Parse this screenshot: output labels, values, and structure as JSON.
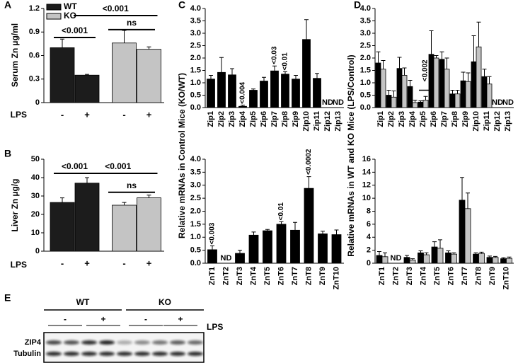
{
  "chart_data": [
    {
      "type": "bar",
      "label": "A",
      "ylabel": "Serum Zn µg/ml",
      "xlabel": "LPS",
      "categories": [
        "-",
        "+",
        "-",
        "+"
      ],
      "series": [
        {
          "colors": [
            "#1c1c1c",
            "#1c1c1c",
            "#c4c4c4",
            "#c4c4c4"
          ],
          "values": [
            0.7,
            0.35,
            0.76,
            0.68
          ],
          "errors": [
            0.11,
            0.01,
            0.16,
            0.03
          ]
        }
      ],
      "legend": [
        {
          "name": "WT",
          "color": "#1c1c1c"
        },
        {
          "name": "KO",
          "color": "#c4c4c4"
        }
      ],
      "annotations": [
        "<0.001",
        "<0.001",
        "ns"
      ],
      "ylim": [
        0,
        1.2
      ],
      "yticks": [
        0,
        0.3,
        0.6,
        0.9,
        1.2
      ]
    },
    {
      "type": "bar",
      "label": "B",
      "ylabel": "Liver Zn µg/g",
      "xlabel": "LPS",
      "categories": [
        "-",
        "+",
        "-",
        "+"
      ],
      "series": [
        {
          "colors": [
            "#1c1c1c",
            "#1c1c1c",
            "#c4c4c4",
            "#c4c4c4"
          ],
          "values": [
            26.5,
            37,
            25,
            29
          ],
          "errors": [
            2.5,
            3,
            1.5,
            1.5
          ]
        }
      ],
      "annotations": [
        "<0.001",
        "<0.001",
        "ns"
      ],
      "ylim": [
        0,
        50
      ],
      "yticks": [
        0,
        10,
        20,
        30,
        40,
        50
      ]
    },
    {
      "type": "bar",
      "label": "C",
      "ylabel": "Relative mRNAs in Control Mice (KO/WT)",
      "categories": [
        "Zip1",
        "Zip2",
        "Zip3",
        "Zip4",
        "Zip5",
        "Zip6",
        "Zip7",
        "Zip8",
        "Zip9",
        "Zip10",
        "Zip11",
        "Zip12",
        "Zip13"
      ],
      "series": [
        {
          "color": "#000000",
          "values": [
            1.15,
            1.42,
            1.32,
            0.05,
            0.7,
            1.07,
            1.48,
            1.35,
            1.15,
            2.75,
            1.18,
            null,
            null
          ],
          "errors": [
            0.15,
            0.6,
            0.25,
            0.05,
            0.05,
            0.15,
            0.2,
            0.1,
            0.15,
            0.8,
            0.2,
            null,
            null
          ],
          "value_labels": [
            null,
            null,
            null,
            null,
            null,
            null,
            null,
            null,
            null,
            null,
            null,
            "ND",
            "ND"
          ]
        }
      ],
      "annotations": [
        "<0.004",
        "<0.03",
        "<0.01"
      ],
      "ylim": [
        0,
        4.0
      ],
      "yticks": [
        {
          "value": 0,
          "label": "0.0"
        },
        0.5,
        {
          "value": 1,
          "label": "1.0"
        },
        1.5,
        {
          "value": 2,
          "label": "2.0"
        },
        2.5,
        {
          "value": 3,
          "label": "3.0"
        },
        3.5,
        {
          "value": 4,
          "label": "4.0"
        }
      ]
    },
    {
      "type": "bar",
      "categories": [
        "ZnT1",
        "ZnT2",
        "ZnT3",
        "ZnT4",
        "ZnT5",
        "ZnT6",
        "ZnT7",
        "ZnT8",
        "ZnT9",
        "ZnT10"
      ],
      "series": [
        {
          "color": "#000000",
          "values": [
            0.52,
            null,
            0.38,
            1.08,
            1.25,
            1.5,
            1.27,
            2.88,
            1.13,
            1.1
          ],
          "errors": [
            0.15,
            null,
            0.12,
            0.12,
            0.05,
            0.1,
            0.3,
            0.45,
            0.1,
            0.18
          ],
          "value_labels": [
            null,
            "ND",
            null,
            null,
            null,
            null,
            null,
            null,
            null,
            null
          ]
        }
      ],
      "annotations": [
        "<0.003",
        "<0.01",
        "<0.0002"
      ],
      "ylim": [
        0,
        4.0
      ],
      "yticks": [
        {
          "value": 0,
          "label": "0.0"
        },
        0.5,
        {
          "value": 1,
          "label": "1.0"
        },
        1.5,
        {
          "value": 2,
          "label": "2.0"
        },
        2.5,
        {
          "value": 3,
          "label": "3.0"
        },
        3.5,
        {
          "value": 4,
          "label": "4.0"
        }
      ]
    },
    {
      "type": "bar",
      "label": "D",
      "ylabel": "Relative mRNAs in WT and KO Mice (LPS/Control)",
      "categories": [
        "Zip1",
        "Zip2",
        "Zip3",
        "Zip4",
        "Zip5",
        "Zip6",
        "Zip7",
        "Zip8",
        "Zip9",
        "Zip10",
        "Zip11",
        "Zip12",
        "Zip13"
      ],
      "series": [
        {
          "color": "#000000",
          "values": [
            1.8,
            0.5,
            1.58,
            0.85,
            0.22,
            2.15,
            1.95,
            0.55,
            1.08,
            1.85,
            1.25,
            null,
            null
          ],
          "errors": [
            0.45,
            0.2,
            0.45,
            0.25,
            0.05,
            0.95,
            0.3,
            0.15,
            0.35,
            1.05,
            0.3,
            null,
            null
          ],
          "value_labels": [
            null,
            null,
            null,
            null,
            null,
            null,
            null,
            null,
            null,
            null,
            null,
            "ND",
            "ND"
          ]
        },
        {
          "color": "#c4c4c4",
          "values": [
            1.55,
            0.42,
            1.3,
            0.2,
            0.3,
            2.0,
            1.55,
            0.55,
            1.05,
            2.45,
            0.95,
            null,
            null
          ],
          "errors": [
            0.35,
            0.25,
            0.3,
            0.1,
            0.15,
            0.1,
            0.45,
            0.15,
            0.35,
            1.0,
            0.3,
            null,
            null
          ]
        }
      ],
      "annotations": [
        "<0.002"
      ],
      "ylim": [
        0,
        4.0
      ],
      "yticks": [
        {
          "value": 0,
          "label": "0.0"
        },
        0.5,
        {
          "value": 1,
          "label": "1.0"
        },
        1.5,
        {
          "value": 2,
          "label": "2.0"
        },
        2.5,
        {
          "value": 3,
          "label": "3.0"
        },
        3.5,
        {
          "value": 4,
          "label": "4.0"
        }
      ]
    },
    {
      "type": "bar",
      "categories": [
        "ZnT1",
        "ZnT2",
        "ZnT3",
        "ZnT4",
        "ZnT5",
        "ZnT6",
        "ZnT7",
        "ZnT8",
        "ZnT9",
        "ZnT10"
      ],
      "series": [
        {
          "color": "#000000",
          "values": [
            1.2,
            null,
            0.9,
            1.6,
            2.5,
            1.6,
            9.7,
            1.4,
            0.9,
            0.7
          ],
          "errors": [
            0.6,
            null,
            0.3,
            0.3,
            0.8,
            0.3,
            3.5,
            0.2,
            0.2,
            0.15
          ],
          "value_labels": [
            null,
            "ND",
            null,
            null,
            null,
            null,
            null,
            null,
            null,
            null
          ]
        },
        {
          "color": "#c4c4c4",
          "values": [
            1.0,
            null,
            0.5,
            1.3,
            2.3,
            1.4,
            8.4,
            1.5,
            0.9,
            0.75
          ],
          "errors": [
            0.6,
            null,
            0.2,
            0.3,
            1.3,
            0.2,
            2.4,
            0.2,
            0.15,
            0.2
          ]
        }
      ],
      "ylim": [
        0,
        16
      ],
      "yticks": [
        0,
        2,
        4,
        6,
        8,
        10,
        12,
        14,
        16
      ]
    }
  ],
  "blot": {
    "label": "E",
    "groups": [
      "WT",
      "KO"
    ],
    "treatments": [
      "-",
      "+",
      "-",
      "+"
    ],
    "treatment_label": "LPS",
    "rows": [
      "ZIP4",
      "Tubulin"
    ]
  }
}
